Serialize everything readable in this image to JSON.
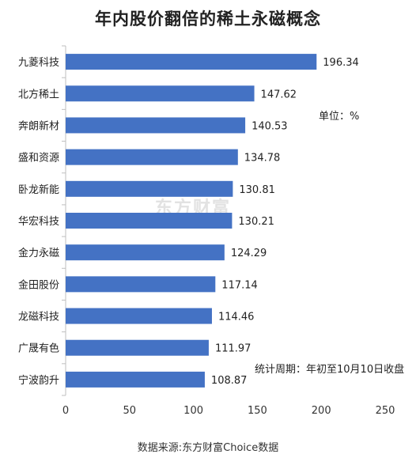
{
  "title": "年内股价翻倍的稀土永磁概念",
  "unit_note": "单位：%",
  "period_note": "统计周期：年初至10月10日收盘",
  "source": "数据来源:东方财富Choice数据",
  "watermark": "东方财富",
  "colors": {
    "bar": "#4472c4",
    "axis": "#bfbfbf",
    "text": "#222222"
  },
  "chart_data": {
    "type": "bar",
    "orientation": "horizontal",
    "title": "年内股价翻倍的稀土永磁概念",
    "categories": [
      "九菱科技",
      "北方稀土",
      "奔朗新材",
      "盛和资源",
      "卧龙新能",
      "华宏科技",
      "金力永磁",
      "金田股份",
      "龙磁科技",
      "广晟有色",
      "宁波韵升"
    ],
    "values": [
      196.34,
      147.62,
      140.53,
      134.78,
      130.81,
      130.21,
      124.29,
      117.14,
      114.46,
      111.97,
      108.87
    ],
    "value_labels": [
      "196.34",
      "147.62",
      "140.53",
      "134.78",
      "130.81",
      "130.21",
      "124.29",
      "117.14",
      "114.46",
      "111.97",
      "108.87"
    ],
    "xlim": [
      0,
      250
    ],
    "xticks": [
      "0",
      "50",
      "100",
      "150",
      "200",
      "250"
    ],
    "xtick_values": [
      0,
      50,
      100,
      150,
      200,
      250
    ],
    "grid": false,
    "legend": "none"
  }
}
